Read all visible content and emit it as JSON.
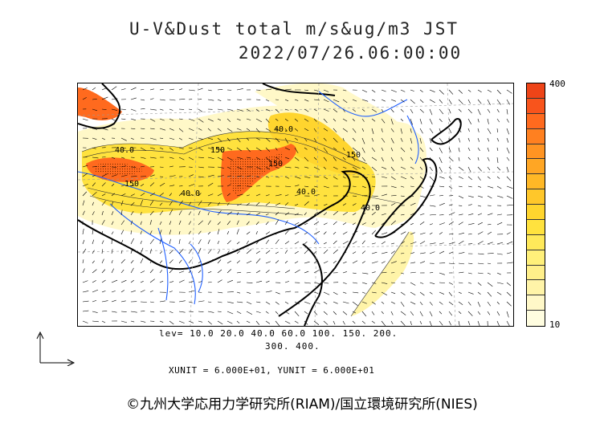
{
  "title": {
    "line1": "U-V&Dust total m/s&ug/m3 JST",
    "line2": "2022/07/26.06:00:00"
  },
  "colorbar": {
    "max_label": "400",
    "min_label": "10",
    "colors": [
      "#fffde0",
      "#fff8c8",
      "#fff4a8",
      "#ffef8a",
      "#fff07a",
      "#ffe95a",
      "#ffe23e",
      "#ffd52e",
      "#ffc72a",
      "#ffb826",
      "#ffa624",
      "#ff9422",
      "#ff8020",
      "#ff6a1e",
      "#f8541c",
      "#ee4418"
    ]
  },
  "levels": {
    "line1": "lev= 10.0 20.0 40.0 60.0 100. 150. 200.",
    "line2": "300. 400."
  },
  "contour_labels": [
    "40.0",
    "150",
    "150",
    "40.0",
    "150",
    "40.0",
    "40.0",
    "150",
    "40.0"
  ],
  "units": "XUNIT = 6.000E+01, YUNIT = 6.000E+01",
  "copyright": "©九州大学応用力学研究所(RIAM)/国立環境研究所(NIES)",
  "colors": {
    "coast": "#000000",
    "rivers": "#1f5fff",
    "low": "#fff8c8",
    "mid": "#ffe23e",
    "high": "#ff6a1e",
    "peak": "#ee4418"
  }
}
